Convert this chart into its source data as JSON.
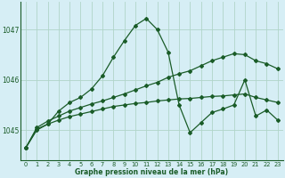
{
  "title": "Graphe pression niveau de la mer (hPa)",
  "background_color": "#d6eef5",
  "grid_color": "#b0d4c8",
  "line_color": "#1a5c28",
  "xlim": [
    -0.5,
    23.5
  ],
  "ylim": [
    1044.4,
    1047.55
  ],
  "yticks": [
    1045,
    1046,
    1047
  ],
  "xticks": [
    0,
    1,
    2,
    3,
    4,
    5,
    6,
    7,
    8,
    9,
    10,
    11,
    12,
    13,
    14,
    15,
    16,
    17,
    18,
    19,
    20,
    21,
    22,
    23
  ],
  "series": [
    [
      1044.65,
      1045.0,
      1045.12,
      1045.38,
      1045.55,
      1045.65,
      1045.82,
      1046.08,
      1046.45,
      1046.78,
      1047.08,
      1047.22,
      1047.0,
      1046.55,
      1045.5,
      1044.95,
      1045.15,
      1045.35,
      1045.42,
      1045.5,
      1046.0,
      1045.28,
      1045.4,
      1045.2
    ],
    [
      1044.65,
      1045.05,
      1045.18,
      1045.28,
      1045.38,
      1045.45,
      1045.52,
      1045.58,
      1045.65,
      1045.72,
      1045.8,
      1045.88,
      1045.95,
      1046.05,
      1046.12,
      1046.18,
      1046.28,
      1046.38,
      1046.45,
      1046.52,
      1046.5,
      1046.38,
      1046.32,
      1046.22
    ],
    [
      1044.65,
      1045.02,
      1045.12,
      1045.2,
      1045.27,
      1045.32,
      1045.37,
      1045.42,
      1045.47,
      1045.5,
      1045.53,
      1045.55,
      1045.58,
      1045.6,
      1045.62,
      1045.63,
      1045.65,
      1045.67,
      1045.68,
      1045.7,
      1045.72,
      1045.65,
      1045.6,
      1045.55
    ]
  ]
}
